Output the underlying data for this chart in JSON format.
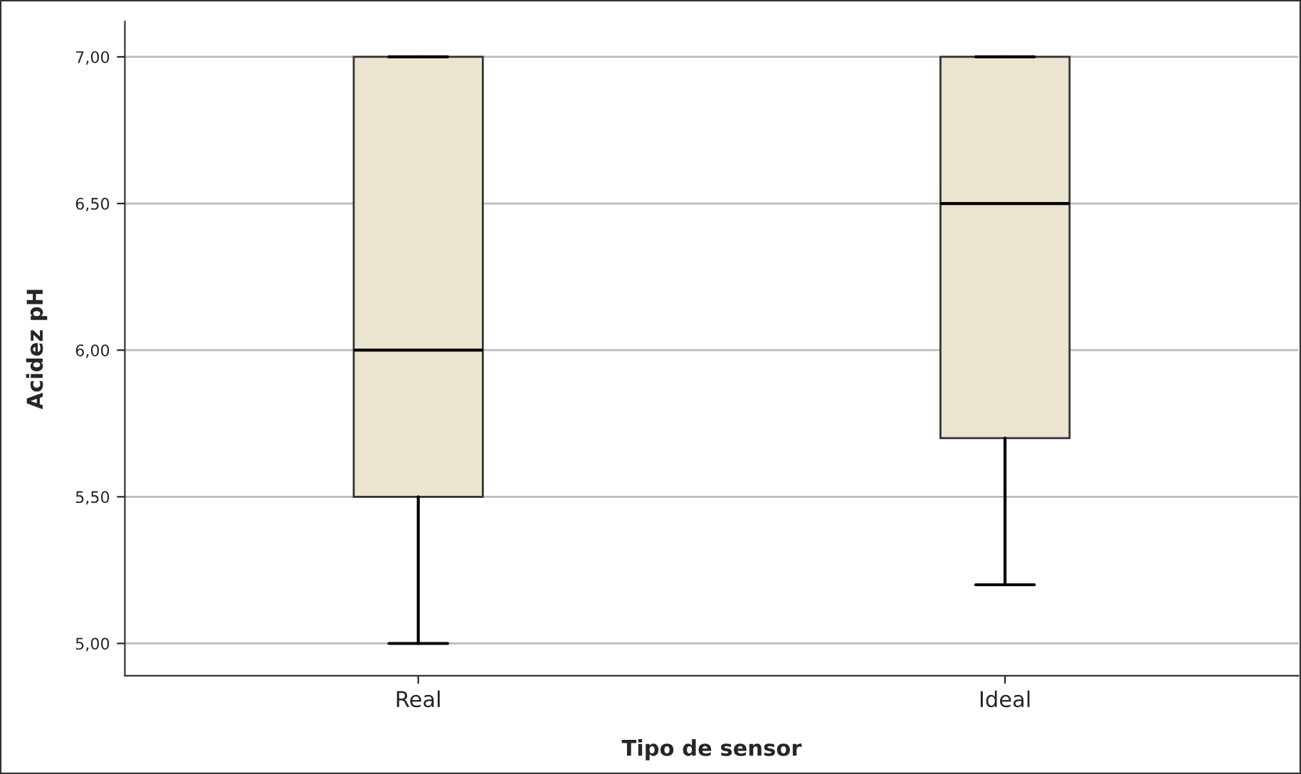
{
  "chart_data": {
    "type": "box",
    "xlabel": "Tipo de sensor",
    "ylabel": "Acidez pH",
    "categories": [
      "Real",
      "Ideal"
    ],
    "boxes": [
      {
        "low": 5.0,
        "q1": 5.5,
        "median": 6.0,
        "q3": 7.0,
        "high": 7.0
      },
      {
        "low": 5.2,
        "q1": 5.7,
        "median": 6.5,
        "q3": 7.0,
        "high": 7.0
      }
    ],
    "color": "#ebe4d1",
    "ylim": [
      4.89,
      7.12
    ],
    "yticks": [
      {
        "value": 5.0,
        "label": "5,00"
      },
      {
        "value": 5.5,
        "label": "5,50"
      },
      {
        "value": 6.0,
        "label": "6,00"
      },
      {
        "value": 6.5,
        "label": "6,50"
      },
      {
        "value": 7.0,
        "label": "7,00"
      }
    ],
    "grid": "y",
    "legend": false
  }
}
